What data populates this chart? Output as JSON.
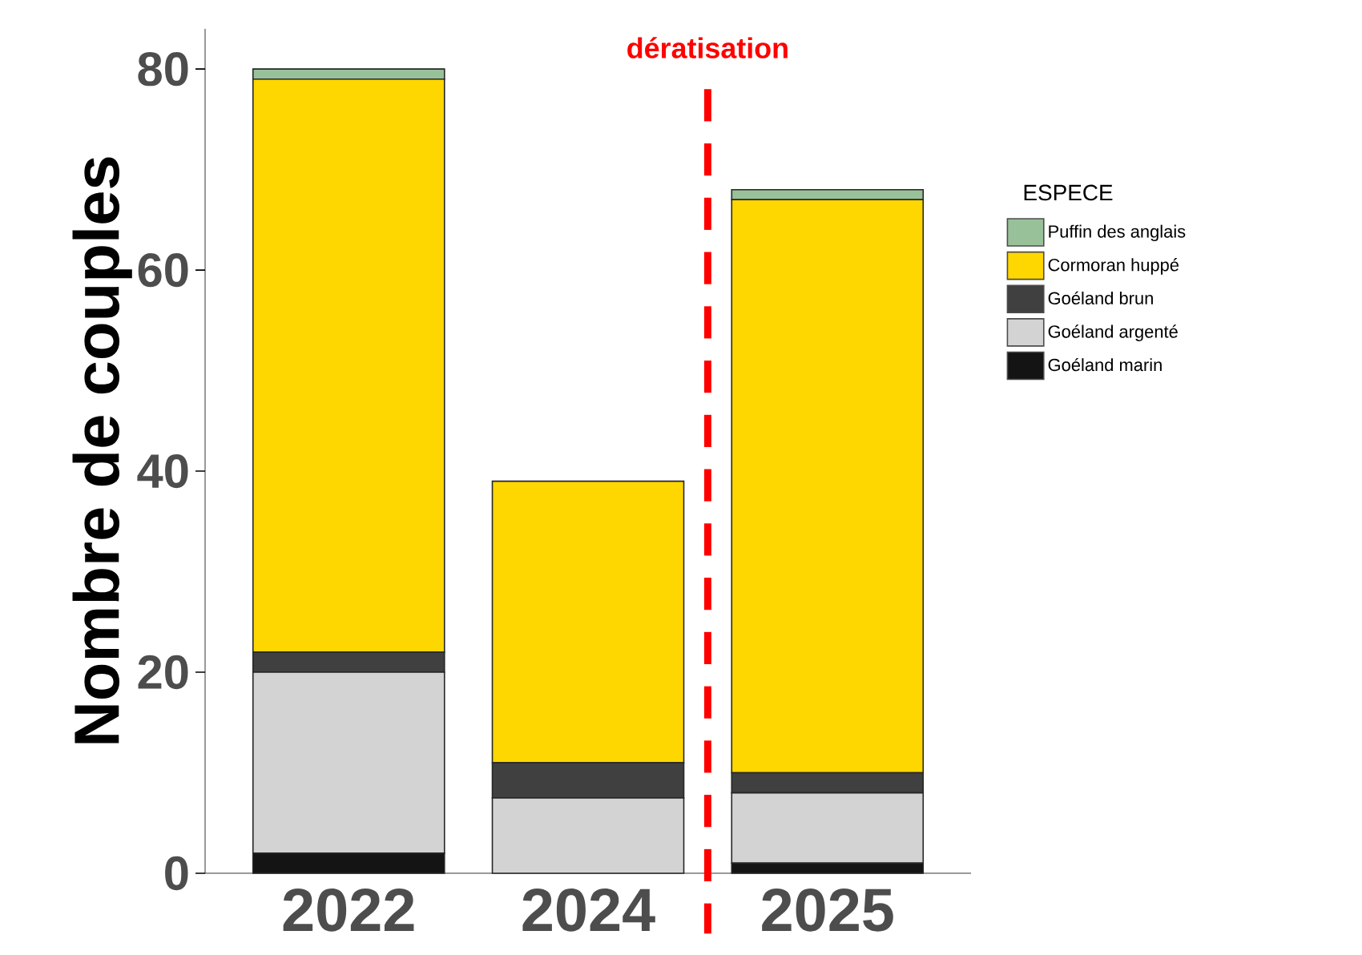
{
  "chart_data": {
    "type": "bar",
    "stacked": true,
    "ylabel": "Nombre de couples",
    "legend_title": "ESPECE",
    "legend": "right",
    "categories": [
      "2022",
      "2024",
      "2025"
    ],
    "series": [
      {
        "name": "Goéland marin",
        "color": "#141414",
        "values": [
          2,
          0,
          1
        ]
      },
      {
        "name": "Goéland argenté",
        "color": "#d3d3d3",
        "values": [
          18,
          7.5,
          7
        ]
      },
      {
        "name": "Goéland brun",
        "color": "#404040",
        "values": [
          2,
          3.5,
          2
        ]
      },
      {
        "name": "Cormoran huppé",
        "color": "#ffd700",
        "values": [
          57,
          28,
          57
        ]
      },
      {
        "name": "Puffin des anglais",
        "color": "#99c199",
        "values": [
          1,
          0,
          1
        ]
      }
    ],
    "ylim": [
      0,
      84
    ],
    "yticks": [
      0,
      20,
      40,
      60,
      80
    ],
    "annotations": [
      "dératisation"
    ]
  }
}
